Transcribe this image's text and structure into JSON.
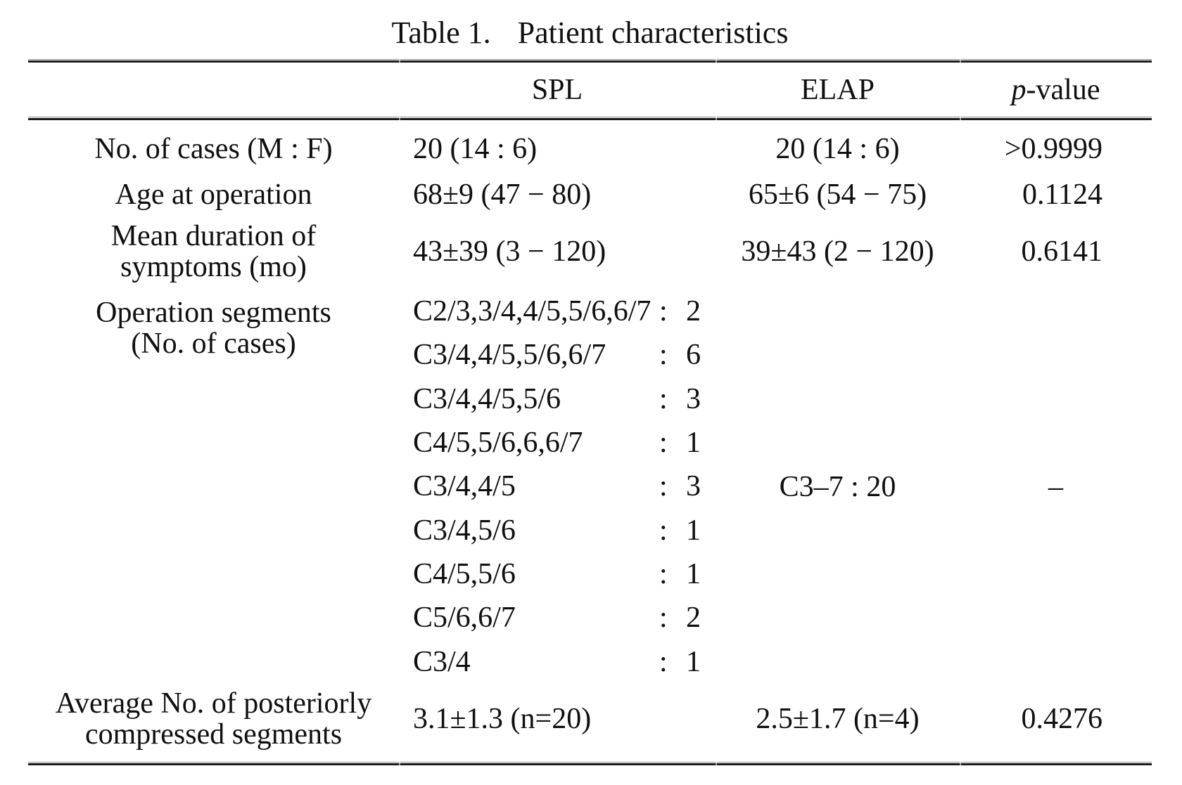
{
  "title": {
    "label": "Table 1.",
    "text": "Patient characteristics"
  },
  "columns": {
    "spl": "SPL",
    "elap": "ELAP",
    "p_italic": "p",
    "p_rest": "-value"
  },
  "glyphs": {
    "colon": ":"
  },
  "rows": {
    "cases": {
      "label": "No. of cases (M : F)",
      "spl": "20 (14 : 6)",
      "elap": "20 (14 : 6)",
      "p": ">0.9999"
    },
    "age": {
      "label": "Age at operation",
      "spl": "68±9 (47 − 80)",
      "elap": "65±6 (54 − 75)",
      "p": "0.1124"
    },
    "duration": {
      "label_line1": "Mean duration of",
      "label_line2": "symptoms (mo)",
      "spl": "43±39 (3 − 120)",
      "elap": "39±43 (2 − 120)",
      "p": "0.6141"
    },
    "segments": {
      "label_line1": "Operation segments",
      "label_line2": "(No. of cases)",
      "elap": "C3–7 : 20",
      "p": "–",
      "list": [
        {
          "levels": "C2/3,3/4,4/5,5/6,6/7",
          "cases": "2"
        },
        {
          "levels": "C3/4,4/5,5/6,6/7",
          "cases": "6"
        },
        {
          "levels": "C3/4,4/5,5/6",
          "cases": "3"
        },
        {
          "levels": "C4/5,5/6,6,6/7",
          "cases": "1"
        },
        {
          "levels": "C3/4,4/5",
          "cases": "3"
        },
        {
          "levels": "C3/4,5/6",
          "cases": "1"
        },
        {
          "levels": "C4/5,5/6",
          "cases": "1"
        },
        {
          "levels": "C5/6,6/7",
          "cases": "2"
        },
        {
          "levels": "C3/4",
          "cases": "1"
        }
      ]
    },
    "compressed": {
      "label_line1": "Average No. of posteriorly",
      "label_line2": "compressed segments",
      "spl": "3.1±1.3 (n=20)",
      "elap": "2.5±1.7 (n=4)",
      "p": "0.4276"
    }
  }
}
